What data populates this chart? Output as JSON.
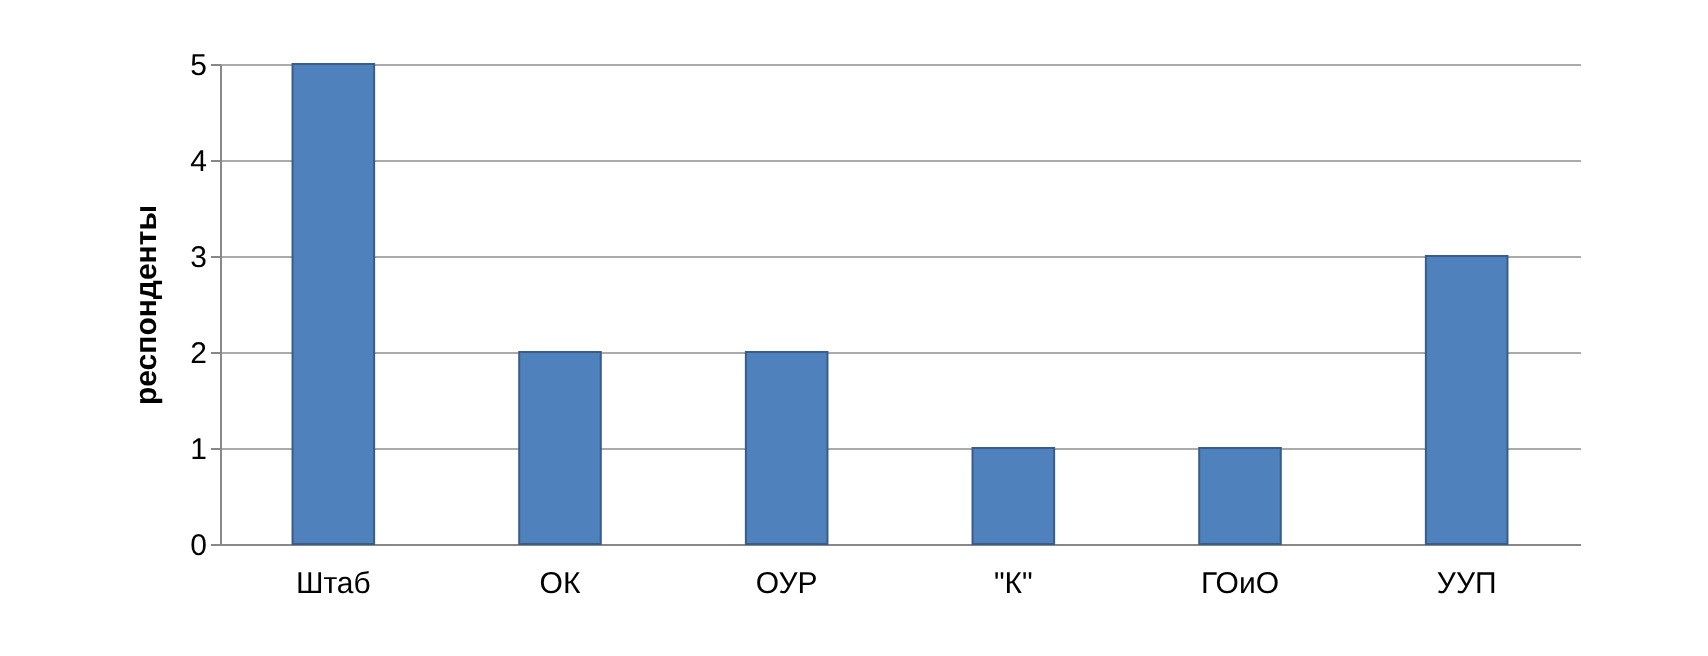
{
  "chart_data": {
    "type": "bar",
    "ylabel": "респонденты",
    "categories": [
      "Штаб",
      "ОК",
      "ОУР",
      "\"К\"",
      "ГОиО",
      "УУП"
    ],
    "values": [
      5,
      2,
      2,
      1,
      1,
      3
    ],
    "color": "#4f81bd",
    "ylim": [
      0,
      5
    ],
    "yticks": [
      0,
      1,
      2,
      3,
      4,
      5
    ],
    "grid": "y"
  }
}
